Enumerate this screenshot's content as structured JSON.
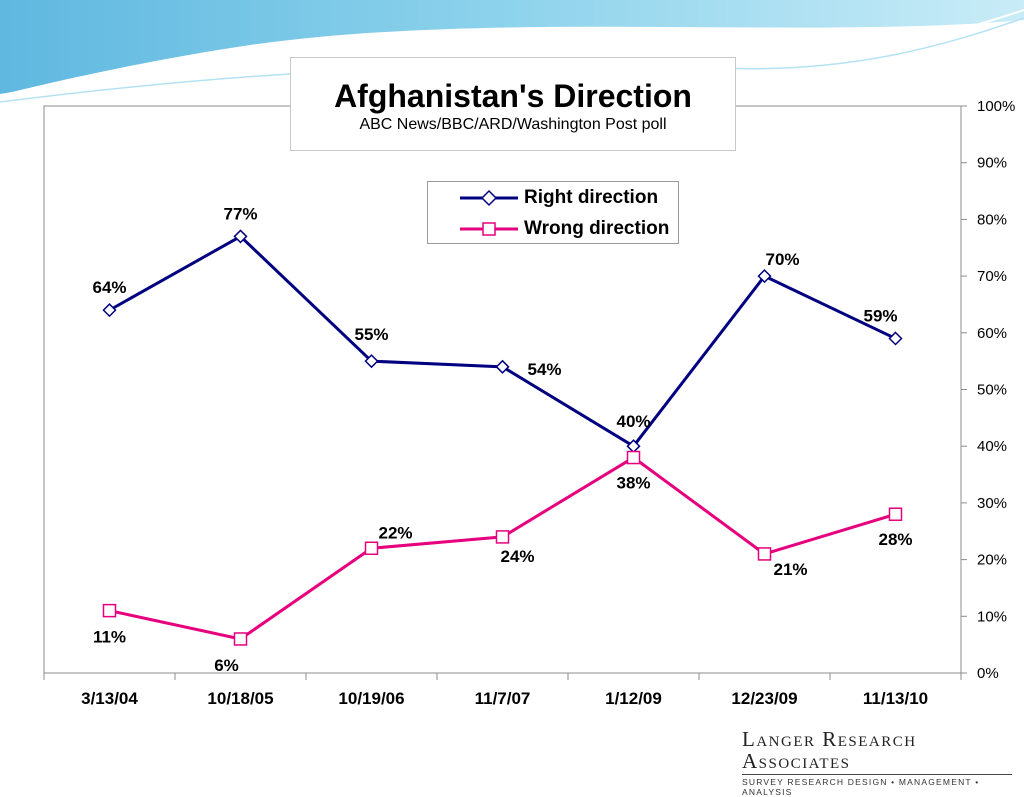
{
  "chart_data": {
    "type": "line",
    "title": "Afghanistan's Direction",
    "subtitle": "ABC News/BBC/ARD/Washington Post poll",
    "categories": [
      "3/13/04",
      "10/18/05",
      "10/19/06",
      "11/7/07",
      "1/12/09",
      "12/23/09",
      "11/13/10"
    ],
    "series": [
      {
        "name": "Right direction",
        "values": [
          64,
          77,
          55,
          54,
          40,
          70,
          59
        ],
        "labels": [
          "64%",
          "77%",
          "55%",
          "54%",
          "40%",
          "70%",
          "59%"
        ],
        "color": "#000080",
        "marker": "diamond"
      },
      {
        "name": "Wrong direction",
        "values": [
          11,
          6,
          22,
          24,
          38,
          21,
          28
        ],
        "labels": [
          "11%",
          "6%",
          "22%",
          "24%",
          "38%",
          "21%",
          "28%"
        ],
        "color": "#e6007e",
        "marker": "square"
      }
    ],
    "y_axis": {
      "min": 0,
      "max": 100,
      "step": 10,
      "position": "right",
      "tick_labels": [
        "0%",
        "10%",
        "20%",
        "30%",
        "40%",
        "50%",
        "60%",
        "70%",
        "80%",
        "90%",
        "100%"
      ]
    },
    "grid": false,
    "legend": "top-center"
  },
  "branding": {
    "logo_text": "Langer Research Associates",
    "logo_tagline": "SURVEY RESEARCH DESIGN • MANAGEMENT • ANALYSIS"
  }
}
